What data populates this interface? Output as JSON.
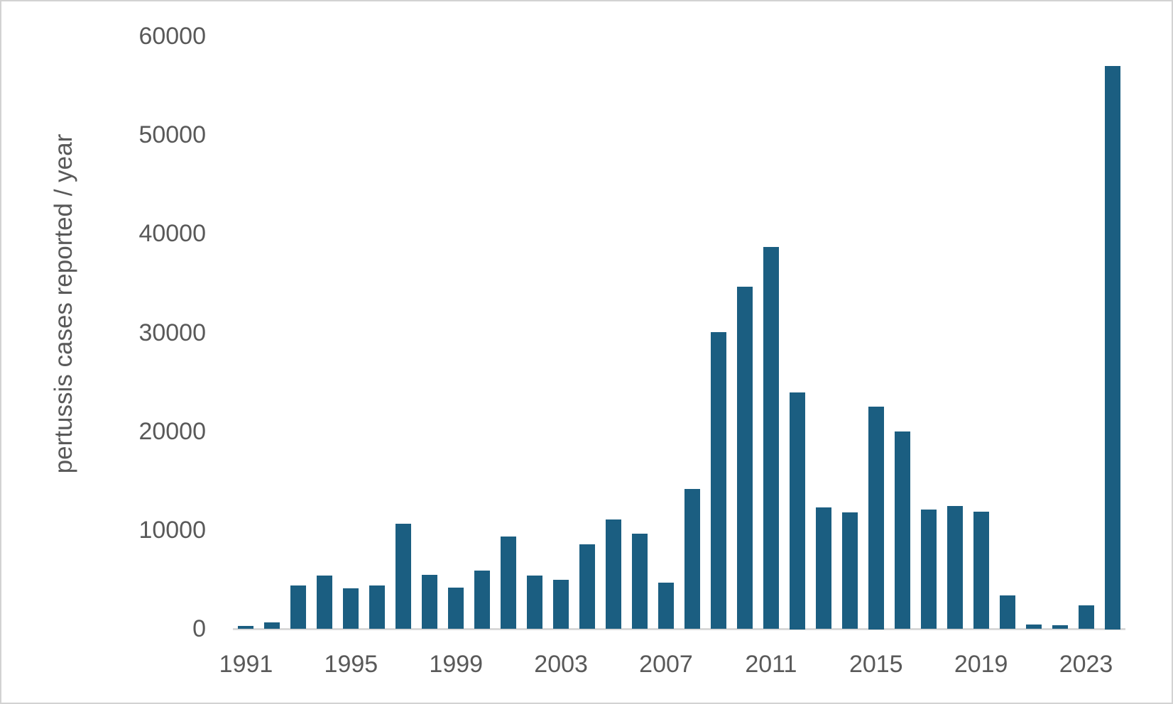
{
  "chart_data": {
    "type": "bar",
    "title": "",
    "xlabel": "",
    "ylabel": "pertussis cases reported  / year",
    "categories": [
      1991,
      1992,
      1993,
      1994,
      1995,
      1996,
      1997,
      1998,
      1999,
      2000,
      2001,
      2002,
      2003,
      2004,
      2005,
      2006,
      2007,
      2008,
      2009,
      2010,
      2011,
      2012,
      2013,
      2014,
      2015,
      2016,
      2017,
      2018,
      2019,
      2020,
      2021,
      2022,
      2023,
      2024
    ],
    "values": [
      350,
      700,
      4400,
      5400,
      4100,
      4400,
      10700,
      5500,
      4200,
      5900,
      9400,
      5400,
      5000,
      8600,
      11100,
      9700,
      4700,
      14200,
      30100,
      34700,
      38700,
      24000,
      12300,
      11800,
      22500,
      20000,
      12100,
      12500,
      11900,
      3400,
      500,
      400,
      2400,
      57000
    ],
    "x_tick_labels": [
      "1991",
      "1995",
      "1999",
      "2003",
      "2007",
      "2011",
      "2015",
      "2019",
      "2023"
    ],
    "x_tick_years": [
      1991,
      1995,
      1999,
      2003,
      2007,
      2011,
      2015,
      2019,
      2023
    ],
    "y_tick_labels": [
      "0",
      "10000",
      "20000",
      "30000",
      "40000",
      "50000",
      "60000"
    ],
    "y_tick_values": [
      0,
      10000,
      20000,
      30000,
      40000,
      50000,
      60000
    ],
    "ylim": [
      0,
      60000
    ],
    "grid": "off",
    "legend": "none",
    "bar_color": "#1b5e81",
    "axis_line_color": "#d9d9d9",
    "tick_label_color": "#595959"
  }
}
